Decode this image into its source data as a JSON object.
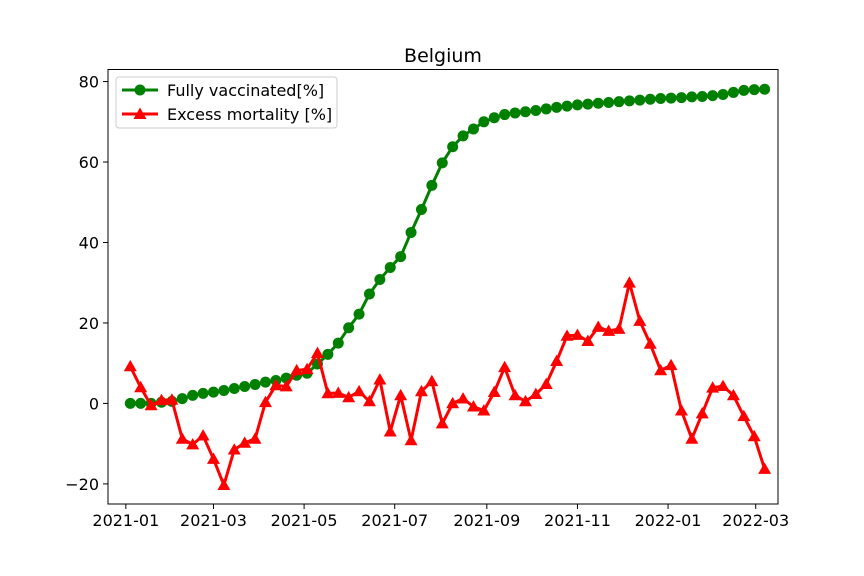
{
  "chart_data": {
    "type": "line",
    "title": "Belgium",
    "xlabel": "",
    "ylabel": "",
    "x_type": "date",
    "xlim": [
      "2020-12-20",
      "2022-03-16"
    ],
    "ylim": [
      -25,
      83
    ],
    "x_ticks": [
      "2021-01-01",
      "2021-03-01",
      "2021-05-01",
      "2021-07-01",
      "2021-09-01",
      "2021-11-01",
      "2022-01-01",
      "2022-03-01"
    ],
    "x_tick_labels": [
      "2021-01",
      "2021-03",
      "2021-05",
      "2021-07",
      "2021-09",
      "2021-11",
      "2022-01",
      "2022-03"
    ],
    "y_ticks": [
      -20,
      0,
      20,
      40,
      60,
      80
    ],
    "y_tick_labels": [
      "−20",
      "0",
      "20",
      "40",
      "60",
      "80"
    ],
    "grid": false,
    "legend_position": "top-left",
    "series_start_date": "2021-01-04",
    "series_interval_days": 7,
    "series": [
      {
        "name": "Fully vaccinated[%]",
        "color": "#008000",
        "marker": "circle",
        "values": [
          0.0,
          0.0,
          0.0,
          0.3,
          0.5,
          1.2,
          2.0,
          2.5,
          2.8,
          3.2,
          3.7,
          4.2,
          4.7,
          5.3,
          5.7,
          6.3,
          7.0,
          7.5,
          9.8,
          12.2,
          15.0,
          18.8,
          22.2,
          27.2,
          30.8,
          33.8,
          36.5,
          42.5,
          48.2,
          54.2,
          59.8,
          63.8,
          66.5,
          68.2,
          70.0,
          71.0,
          71.8,
          72.2,
          72.5,
          72.8,
          73.2,
          73.6,
          73.9,
          74.2,
          74.4,
          74.6,
          74.8,
          75.0,
          75.2,
          75.4,
          75.6,
          75.8,
          75.9,
          76.0,
          76.2,
          76.3,
          76.5,
          76.8,
          77.3,
          77.8,
          78.0,
          78.1
        ]
      },
      {
        "name": "Excess mortality [%]",
        "color": "#ff0000",
        "marker": "triangle",
        "values": [
          9.2,
          4.0,
          -0.5,
          0.8,
          0.9,
          -8.8,
          -10.2,
          -8.0,
          -13.8,
          -20.3,
          -11.5,
          -9.8,
          -8.8,
          0.3,
          4.5,
          4.2,
          8.2,
          8.5,
          12.5,
          2.5,
          2.6,
          1.5,
          3.0,
          0.5,
          5.9,
          -7.0,
          2.0,
          -9.2,
          3.0,
          5.5,
          -5.0,
          0.0,
          1.2,
          -0.8,
          -1.8,
          2.8,
          9.0,
          2.0,
          0.5,
          2.3,
          4.8,
          10.5,
          16.8,
          17.0,
          15.5,
          19.0,
          18.0,
          18.5,
          30.0,
          20.5,
          14.8,
          8.2,
          9.5,
          -1.8,
          -8.8,
          -2.5,
          3.9,
          4.3,
          2.0,
          -3.2,
          -8.2,
          -16.3
        ]
      }
    ]
  }
}
